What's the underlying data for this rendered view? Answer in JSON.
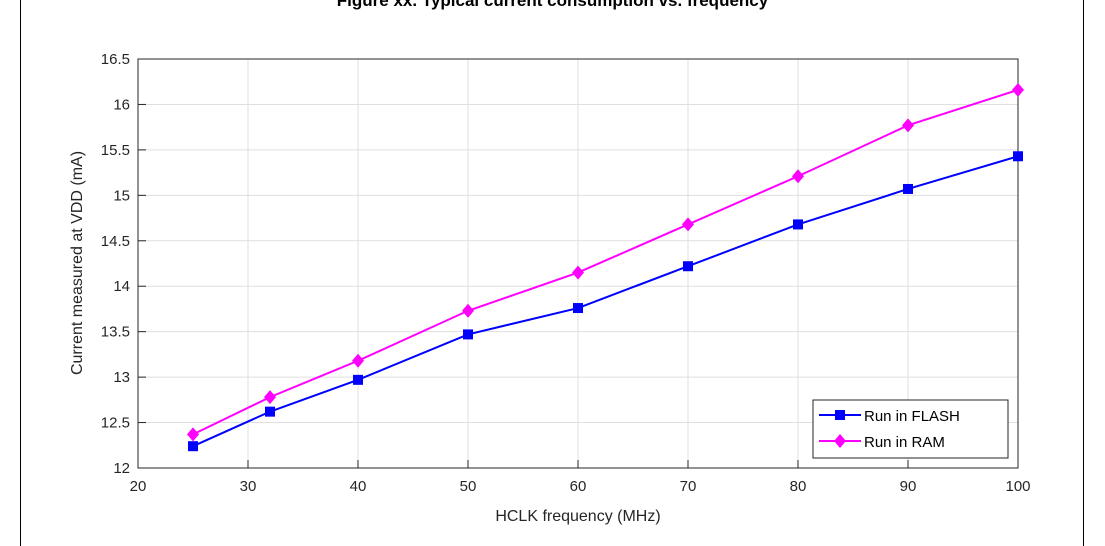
{
  "page": {
    "title": "Figure xx. Typical current consumption vs. frequency"
  },
  "chart_data": {
    "type": "line",
    "title": "",
    "xlabel": "HCLK frequency (MHz)",
    "ylabel": "Current measured at VDD (mA)",
    "xlim": [
      20,
      100
    ],
    "ylim": [
      12,
      16.5
    ],
    "xticks": [
      20,
      30,
      40,
      50,
      60,
      70,
      80,
      90,
      100
    ],
    "yticks": [
      12,
      12.5,
      13,
      13.5,
      14,
      14.5,
      15,
      15.5,
      16,
      16.5
    ],
    "xtick_labels": [
      "20",
      "30",
      "40",
      "50",
      "60",
      "70",
      "80",
      "90",
      "100"
    ],
    "ytick_labels": [
      "12",
      "12.5",
      "13",
      "13.5",
      "14",
      "14.5",
      "15",
      "15.5",
      "16",
      "16.5"
    ],
    "grid": true,
    "legend_position": "bottom-right",
    "x": [
      25,
      32,
      40,
      50,
      60,
      70,
      80,
      90,
      100
    ],
    "series": [
      {
        "name": "Run in FLASH",
        "color": "#0000FF",
        "marker": "square",
        "values": [
          12.24,
          12.62,
          12.97,
          13.47,
          13.76,
          14.22,
          14.68,
          15.07,
          15.43
        ]
      },
      {
        "name": "Run in RAM",
        "color": "#FF00FF",
        "marker": "diamond",
        "values": [
          12.37,
          12.78,
          13.18,
          13.73,
          14.15,
          14.68,
          15.21,
          15.77,
          16.16
        ]
      }
    ]
  }
}
